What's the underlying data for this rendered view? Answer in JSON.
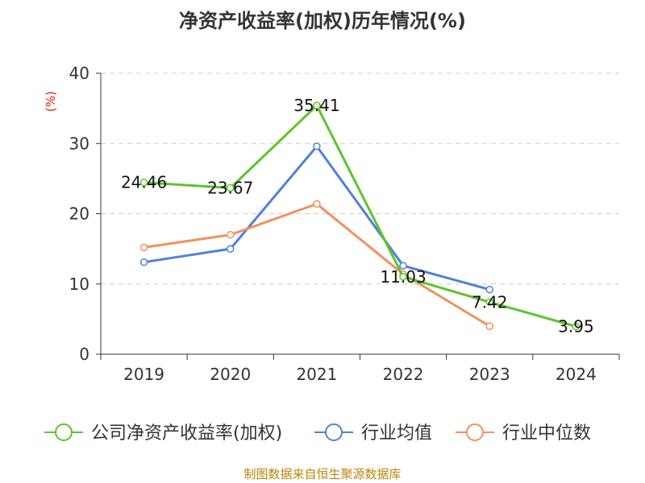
{
  "chart_data": {
    "type": "line",
    "title": "净资产收益率(加权)历年情况(%)",
    "ylabel": "(%)",
    "xlabel": "",
    "categories": [
      "2019",
      "2020",
      "2021",
      "2022",
      "2023",
      "2024"
    ],
    "ylim": [
      0,
      40
    ],
    "yticks": [
      0,
      10,
      20,
      30,
      40
    ],
    "grid": true,
    "legend_position": "bottom",
    "series": [
      {
        "name": "公司净资产收益率(加权)",
        "color": "#5cc52b",
        "values": [
          24.46,
          23.67,
          35.41,
          11.03,
          7.42,
          3.95
        ],
        "labels": [
          "24.46",
          "23.67",
          "35.41",
          "11.03",
          "7.42",
          "3.95"
        ]
      },
      {
        "name": "行业均值",
        "color": "#4f81d9",
        "values": [
          13.1,
          15.0,
          29.6,
          12.6,
          9.2,
          null
        ]
      },
      {
        "name": "行业中位数",
        "color": "#f39060",
        "values": [
          15.2,
          17.0,
          21.4,
          11.4,
          4.0,
          null
        ]
      }
    ]
  },
  "source": "制图数据来自恒生聚源数据库"
}
